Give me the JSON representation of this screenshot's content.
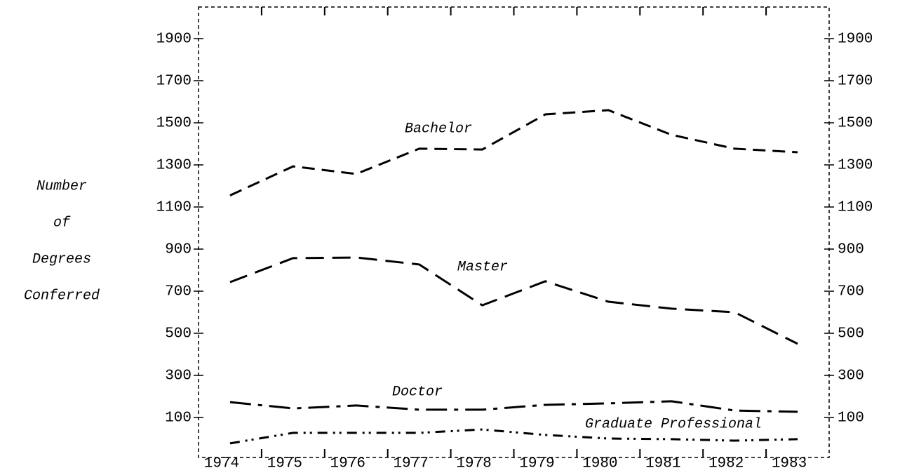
{
  "chart_data": {
    "type": "line",
    "ylabel_lines": [
      "Number",
      "of",
      "Degrees",
      "Conferred"
    ],
    "categories": [
      "1974",
      "1975",
      "1976",
      "1977",
      "1978",
      "1979",
      "1980",
      "1981",
      "1982",
      "1983"
    ],
    "series": [
      {
        "name": "Bachelor",
        "color": "#000000",
        "values": [
          1155,
          1293,
          1257,
          1377,
          1373,
          1540,
          1560,
          1443,
          1377,
          1360
        ]
      },
      {
        "name": "Master",
        "color": "#000000",
        "values": [
          743,
          857,
          860,
          827,
          633,
          747,
          650,
          617,
          600,
          450
        ]
      },
      {
        "name": "Doctor",
        "color": "#000000",
        "values": [
          173,
          143,
          157,
          137,
          137,
          160,
          167,
          177,
          133,
          127
        ]
      },
      {
        "name": "Graduate Professional",
        "color": "#000000",
        "values": [
          -23,
          27,
          27,
          27,
          43,
          17,
          0,
          -3,
          -10,
          -3
        ]
      }
    ],
    "ylim": [
      -90,
      2050
    ],
    "yticks": [
      100,
      300,
      500,
      700,
      900,
      1100,
      1300,
      1500,
      1700,
      1900
    ]
  }
}
